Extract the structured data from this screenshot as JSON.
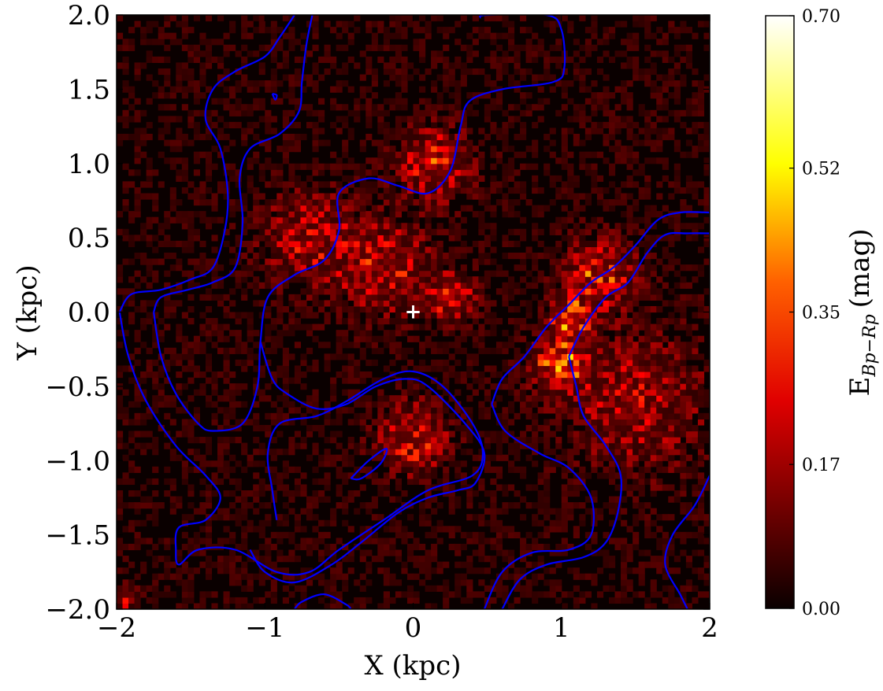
{
  "chart_data": {
    "type": "heatmap",
    "title": "",
    "xlabel": "X (kpc)",
    "ylabel": "Y (kpc)",
    "xlim": [
      -2,
      2
    ],
    "ylim": [
      -2,
      2
    ],
    "x_ticks": [
      -2,
      -1,
      0,
      1,
      2
    ],
    "y_ticks": [
      -2,
      -1.5,
      -1,
      -0.5,
      0,
      0.5,
      1,
      1.5,
      2
    ],
    "x_tick_labels": [
      "−2",
      "−1",
      "0",
      "1",
      "2"
    ],
    "y_tick_labels": [
      "−2.0",
      "−1.5",
      "−1.0",
      "−0.5",
      "0.0",
      "0.5",
      "1.0",
      "1.5",
      "2.0"
    ],
    "grid": false,
    "colormap": "hot",
    "colorbar": {
      "label_main": "E",
      "label_sub": "Bp−Rp",
      "label_unit": "(mag)",
      "range": [
        0,
        0.7
      ],
      "ticks": [
        0.0,
        0.17,
        0.35,
        0.52,
        0.7
      ],
      "tick_labels": [
        "0.00",
        "0.17",
        "0.35",
        "0.52",
        "0.70"
      ]
    },
    "center_marker": {
      "x": 0,
      "y": 0,
      "symbol": "+",
      "color": "#ffffff"
    },
    "contour_color": "#0000ff",
    "extinction_regions": [
      {
        "x": 1.05,
        "y": -0.05,
        "sigma": 0.08,
        "value": 0.55
      },
      {
        "x": 1.0,
        "y": -0.35,
        "sigma": 0.12,
        "value": 0.38
      },
      {
        "x": 1.25,
        "y": 0.25,
        "sigma": 0.15,
        "value": 0.3
      },
      {
        "x": 0.15,
        "y": 1.0,
        "sigma": 0.15,
        "value": 0.3
      },
      {
        "x": -0.2,
        "y": 0.3,
        "sigma": 0.2,
        "value": 0.24
      },
      {
        "x": 0.25,
        "y": 0.1,
        "sigma": 0.1,
        "value": 0.3
      },
      {
        "x": 0.0,
        "y": -0.85,
        "sigma": 0.15,
        "value": 0.27
      },
      {
        "x": -0.7,
        "y": 0.5,
        "sigma": 0.2,
        "value": 0.2
      },
      {
        "x": 1.5,
        "y": -0.6,
        "sigma": 0.3,
        "value": 0.18
      },
      {
        "x": -1.95,
        "y": -1.92,
        "sigma": 0.05,
        "value": 0.3
      }
    ],
    "contours": [
      [
        [
          -1.98,
          0.0
        ],
        [
          -1.9,
          0.12
        ],
        [
          -1.7,
          0.15
        ],
        [
          -1.5,
          0.22
        ],
        [
          -1.35,
          0.3
        ],
        [
          -1.27,
          0.55
        ],
        [
          -1.25,
          0.8
        ],
        [
          -1.3,
          1.1
        ],
        [
          -1.4,
          1.3
        ],
        [
          -1.35,
          1.5
        ],
        [
          -1.2,
          1.62
        ],
        [
          -1.0,
          1.72
        ],
        [
          -0.9,
          1.85
        ],
        [
          -0.8,
          2.0
        ]
      ],
      [
        [
          -1.75,
          0.0
        ],
        [
          -1.7,
          0.1
        ],
        [
          -1.52,
          0.15
        ],
        [
          -1.35,
          0.2
        ],
        [
          -1.2,
          0.3
        ],
        [
          -1.15,
          0.6
        ],
        [
          -1.17,
          0.9
        ],
        [
          -1.1,
          1.1
        ],
        [
          -0.9,
          1.2
        ],
        [
          -0.77,
          1.35
        ],
        [
          -0.75,
          1.55
        ],
        [
          -0.72,
          1.8
        ],
        [
          -0.68,
          2.0
        ]
      ],
      [
        [
          -0.95,
          1.47
        ],
        [
          -0.93,
          1.43
        ],
        [
          -0.92,
          1.46
        ],
        [
          -0.95,
          1.47
        ]
      ],
      [
        [
          -1.98,
          0.0
        ],
        [
          -1.92,
          -0.3
        ],
        [
          -1.8,
          -0.6
        ],
        [
          -1.6,
          -0.9
        ],
        [
          -1.4,
          -1.1
        ],
        [
          -1.3,
          -1.25
        ],
        [
          -1.4,
          -1.4
        ],
        [
          -1.58,
          -1.45
        ],
        [
          -1.6,
          -1.6
        ],
        [
          -1.58,
          -1.7
        ],
        [
          -1.45,
          -1.6
        ],
        [
          -1.2,
          -1.6
        ],
        [
          -0.92,
          -1.75
        ],
        [
          -0.7,
          -1.75
        ],
        [
          -0.5,
          -1.6
        ],
        [
          -0.2,
          -1.4
        ],
        [
          0.1,
          -1.2
        ],
        [
          0.4,
          -1.1
        ],
        [
          0.47,
          -0.95
        ],
        [
          0.4,
          -0.75
        ],
        [
          0.2,
          -0.5
        ],
        [
          0.0,
          -0.4
        ],
        [
          -0.2,
          -0.45
        ],
        [
          -0.45,
          -0.6
        ],
        [
          -0.65,
          -0.7
        ],
        [
          -0.9,
          -0.75
        ],
        [
          -0.98,
          -0.95
        ],
        [
          -0.95,
          -1.2
        ],
        [
          -0.92,
          -1.4
        ]
      ],
      [
        [
          -1.75,
          0.0
        ],
        [
          -1.7,
          -0.3
        ],
        [
          -1.6,
          -0.55
        ],
        [
          -1.45,
          -0.75
        ],
        [
          -1.35,
          -0.8
        ],
        [
          -1.15,
          -0.75
        ],
        [
          -1.05,
          -0.5
        ],
        [
          -1.03,
          -0.2
        ],
        [
          -0.98,
          0.1
        ],
        [
          -0.8,
          0.25
        ],
        [
          -0.6,
          0.35
        ],
        [
          -0.5,
          0.55
        ],
        [
          -0.5,
          0.8
        ],
        [
          -0.3,
          0.9
        ],
        [
          -0.1,
          0.85
        ],
        [
          0.1,
          0.8
        ],
        [
          0.25,
          0.95
        ],
        [
          0.32,
          1.25
        ],
        [
          0.38,
          1.42
        ],
        [
          0.6,
          1.5
        ],
        [
          0.95,
          1.55
        ],
        [
          1.02,
          1.65
        ],
        [
          1.0,
          1.9
        ],
        [
          0.9,
          2.0
        ],
        [
          0.5,
          2.0
        ],
        [
          0.45,
          1.98
        ]
      ],
      [
        [
          -1.03,
          -0.2
        ],
        [
          -0.95,
          -0.45
        ],
        [
          -0.85,
          -0.55
        ],
        [
          -0.65,
          -0.65
        ],
        [
          -0.45,
          -0.62
        ],
        [
          -0.25,
          -0.5
        ],
        [
          -0.05,
          -0.45
        ],
        [
          0.1,
          -0.5
        ],
        [
          0.35,
          -0.75
        ],
        [
          0.48,
          -0.95
        ],
        [
          0.42,
          -1.15
        ],
        [
          0.3,
          -1.2
        ],
        [
          0.1,
          -1.25
        ],
        [
          -0.1,
          -1.35
        ],
        [
          -0.35,
          -1.55
        ],
        [
          -0.55,
          -1.7
        ],
        [
          -0.8,
          -1.82
        ],
        [
          -1.0,
          -1.75
        ],
        [
          -1.1,
          -1.6
        ]
      ],
      [
        [
          -0.42,
          -1.12
        ],
        [
          -0.3,
          -1.0
        ],
        [
          -0.18,
          -0.92
        ],
        [
          -0.22,
          -1.02
        ],
        [
          -0.35,
          -1.12
        ],
        [
          -0.42,
          -1.12
        ]
      ],
      [
        [
          -0.8,
          -2.0
        ],
        [
          -0.75,
          -1.95
        ],
        [
          -0.6,
          -1.9
        ],
        [
          -0.45,
          -1.97
        ],
        [
          -0.42,
          -2.0
        ]
      ],
      [
        [
          0.53,
          -0.62
        ],
        [
          0.6,
          -0.45
        ],
        [
          0.75,
          -0.3
        ],
        [
          0.9,
          -0.1
        ],
        [
          1.05,
          0.05
        ],
        [
          1.2,
          0.2
        ],
        [
          1.35,
          0.3
        ],
        [
          1.5,
          0.45
        ],
        [
          1.65,
          0.62
        ],
        [
          1.8,
          0.67
        ],
        [
          2.0,
          0.67
        ]
      ],
      [
        [
          1.05,
          -0.3
        ],
        [
          1.15,
          -0.1
        ],
        [
          1.3,
          0.1
        ],
        [
          1.45,
          0.2
        ],
        [
          1.58,
          0.4
        ],
        [
          1.7,
          0.52
        ],
        [
          1.85,
          0.53
        ],
        [
          2.0,
          0.53
        ]
      ],
      [
        [
          1.05,
          -0.3
        ],
        [
          1.1,
          -0.5
        ],
        [
          1.15,
          -0.7
        ],
        [
          1.3,
          -0.9
        ],
        [
          1.4,
          -1.1
        ],
        [
          1.38,
          -1.35
        ],
        [
          1.3,
          -1.55
        ],
        [
          1.15,
          -1.65
        ],
        [
          0.9,
          -1.7
        ],
        [
          0.72,
          -1.8
        ],
        [
          0.6,
          -2.0
        ]
      ],
      [
        [
          0.53,
          -0.62
        ],
        [
          0.62,
          -0.8
        ],
        [
          0.85,
          -0.95
        ],
        [
          1.05,
          -1.05
        ],
        [
          1.2,
          -1.25
        ],
        [
          1.2,
          -1.5
        ],
        [
          1.05,
          -1.6
        ],
        [
          0.8,
          -1.62
        ],
        [
          0.6,
          -1.75
        ],
        [
          0.48,
          -2.0
        ]
      ],
      [
        [
          2.0,
          -1.1
        ],
        [
          1.9,
          -1.3
        ],
        [
          1.75,
          -1.5
        ],
        [
          1.7,
          -1.7
        ],
        [
          1.8,
          -1.9
        ],
        [
          1.85,
          -2.0
        ]
      ]
    ]
  }
}
